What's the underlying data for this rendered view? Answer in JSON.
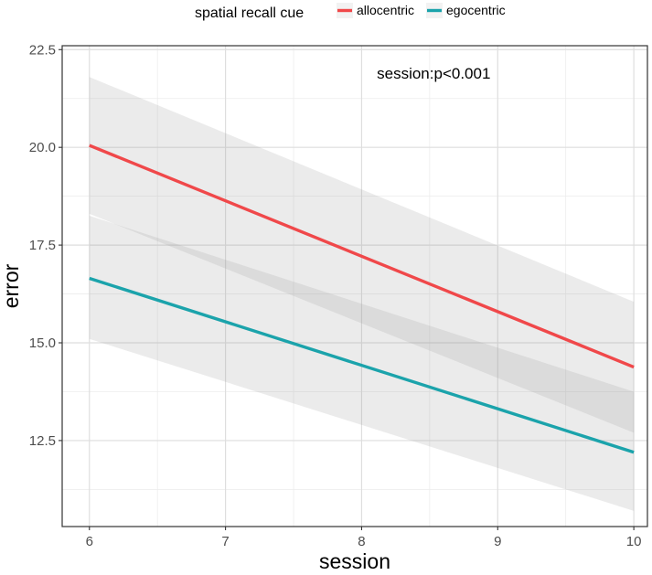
{
  "chart_data": {
    "type": "line",
    "xlabel": "session",
    "ylabel": "error",
    "xlim": [
      5.8,
      10.1
    ],
    "ylim": [
      10.3,
      22.6
    ],
    "xticks": [
      6,
      7,
      8,
      9,
      10
    ],
    "xtick_labels": [
      "6",
      "7",
      "8",
      "9",
      "10"
    ],
    "yticks": [
      12.5,
      15.0,
      17.5,
      20.0,
      22.5
    ],
    "ytick_labels": [
      "12.5",
      "15.0",
      "17.5",
      "20.0",
      "22.5"
    ],
    "grid": true,
    "legend": {
      "title": "spatial recall cue",
      "position": "top"
    },
    "annotation": {
      "text": "session:p<0.001",
      "x": 9.0,
      "y": 21.9
    },
    "series": [
      {
        "name": "allocentric",
        "color": "#f0484a",
        "x": [
          6,
          10
        ],
        "y": [
          20.05,
          14.38
        ],
        "ci_lower": [
          18.3,
          12.7
        ],
        "ci_upper": [
          21.8,
          16.05
        ]
      },
      {
        "name": "egocentric",
        "color": "#1ba3ab",
        "x": [
          6,
          10
        ],
        "y": [
          16.65,
          12.2
        ],
        "ci_lower": [
          15.1,
          10.7
        ],
        "ci_upper": [
          18.25,
          13.75
        ]
      }
    ]
  }
}
